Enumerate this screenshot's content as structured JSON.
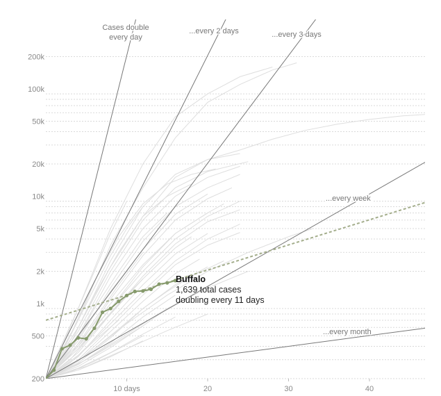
{
  "chart_data": {
    "type": "line",
    "title": "",
    "xlabel": "",
    "ylabel": "",
    "yscale": "log",
    "xlim": [
      0,
      47
    ],
    "ylim": [
      200,
      260000
    ],
    "x_ticks": [
      {
        "value": 10,
        "label": "10 days"
      },
      {
        "value": 20,
        "label": "20"
      },
      {
        "value": 30,
        "label": "30"
      },
      {
        "value": 40,
        "label": "40"
      }
    ],
    "y_ticks": [
      {
        "value": 200,
        "label": "200"
      },
      {
        "value": 500,
        "label": "500"
      },
      {
        "value": 1000,
        "label": "1k"
      },
      {
        "value": 2000,
        "label": "2k"
      },
      {
        "value": 5000,
        "label": "5k"
      },
      {
        "value": 10000,
        "label": "10k"
      },
      {
        "value": 20000,
        "label": "20k"
      },
      {
        "value": 50000,
        "label": "50k"
      },
      {
        "value": 100000,
        "label": "100k"
      },
      {
        "value": 200000,
        "label": "200k"
      }
    ],
    "grid": true,
    "reference_lines": [
      {
        "label": "Cases double every day",
        "label_lines": [
          "Cases double",
          "every day"
        ],
        "doubling_days": 1,
        "color": "#777777"
      },
      {
        "label": "...every 2 days",
        "label_lines": [
          "...every 2 days"
        ],
        "doubling_days": 2,
        "color": "#777777"
      },
      {
        "label": "...every 3 days",
        "label_lines": [
          "...every 3 days"
        ],
        "doubling_days": 3,
        "color": "#777777"
      },
      {
        "label": "...every week",
        "label_lines": [
          "...every week"
        ],
        "doubling_days": 7,
        "color": "#777777"
      },
      {
        "label": "...every month",
        "label_lines": [
          "...every month"
        ],
        "doubling_days": 30,
        "color": "#777777"
      }
    ],
    "highlight_series": {
      "name": "Buffalo",
      "color": "#869a6c",
      "x": [
        0,
        1,
        2,
        3,
        4,
        5,
        6,
        7,
        8,
        9,
        10,
        11,
        12,
        13,
        14,
        15,
        16
      ],
      "y": [
        200,
        240,
        380,
        410,
        480,
        470,
        590,
        830,
        900,
        1050,
        1190,
        1300,
        1310,
        1360,
        1520,
        1560,
        1639
      ],
      "trend": {
        "x": [
          0,
          47
        ],
        "y": [
          700,
          8800
        ],
        "style": "dashed"
      }
    },
    "background_series": [
      {
        "x": [
          0,
          4,
          8,
          12,
          16,
          20,
          24,
          28,
          32,
          36,
          40,
          44,
          47
        ],
        "y": [
          200,
          600,
          2200,
          6500,
          15000,
          22000,
          27000,
          34000,
          41000,
          47000,
          52000,
          56000,
          58000
        ]
      },
      {
        "x": [
          0,
          4,
          8,
          12,
          16,
          20,
          24,
          28
        ],
        "y": [
          200,
          900,
          5000,
          20000,
          55000,
          90000,
          130000,
          160000
        ]
      },
      {
        "x": [
          0,
          4,
          8,
          12,
          16,
          20,
          24,
          28,
          31
        ],
        "y": [
          200,
          700,
          3500,
          12000,
          35000,
          75000,
          110000,
          150000,
          175000
        ]
      },
      {
        "x": [
          0,
          4,
          8,
          12,
          16,
          20,
          24
        ],
        "y": [
          200,
          500,
          1800,
          5000,
          10000,
          15000,
          19000
        ]
      },
      {
        "x": [
          0,
          4,
          8,
          12,
          16,
          20,
          24
        ],
        "y": [
          200,
          450,
          1400,
          3800,
          8000,
          12000,
          16000
        ]
      },
      {
        "x": [
          0,
          4,
          8,
          12,
          16,
          20,
          23
        ],
        "y": [
          200,
          400,
          1100,
          2800,
          6000,
          9500,
          12000
        ]
      },
      {
        "x": [
          0,
          4,
          8,
          12,
          16,
          20,
          22
        ],
        "y": [
          200,
          380,
          900,
          2200,
          4500,
          7000,
          8500
        ]
      },
      {
        "x": [
          0,
          4,
          8,
          12,
          16,
          20,
          24
        ],
        "y": [
          200,
          350,
          800,
          1800,
          3600,
          5800,
          7500
        ]
      },
      {
        "x": [
          0,
          4,
          8,
          12,
          16,
          20
        ],
        "y": [
          200,
          320,
          700,
          1500,
          2900,
          4500
        ]
      },
      {
        "x": [
          0,
          4,
          8,
          12,
          16,
          20,
          24
        ],
        "y": [
          200,
          300,
          600,
          1200,
          2300,
          3500,
          4600
        ]
      },
      {
        "x": [
          0,
          4,
          8,
          12,
          16,
          19
        ],
        "y": [
          200,
          290,
          550,
          1050,
          1900,
          2600
        ]
      },
      {
        "x": [
          0,
          4,
          8,
          12,
          16,
          20
        ],
        "y": [
          200,
          280,
          480,
          900,
          1500,
          2200
        ]
      },
      {
        "x": [
          0,
          4,
          8,
          12,
          16
        ],
        "y": [
          200,
          270,
          430,
          750,
          1200
        ]
      },
      {
        "x": [
          0,
          4,
          8,
          12,
          15
        ],
        "y": [
          200,
          260,
          390,
          620,
          900
        ]
      },
      {
        "x": [
          0,
          4,
          8,
          12,
          16
        ],
        "y": [
          200,
          250,
          350,
          520,
          750
        ]
      },
      {
        "x": [
          0,
          4,
          8,
          12
        ],
        "y": [
          200,
          240,
          320,
          450
        ]
      },
      {
        "x": [
          0,
          3,
          6,
          9,
          12
        ],
        "y": [
          200,
          330,
          700,
          1500,
          3000
        ]
      },
      {
        "x": [
          0,
          3,
          6,
          9,
          12,
          15
        ],
        "y": [
          200,
          360,
          900,
          2000,
          4200,
          7000
        ]
      },
      {
        "x": [
          0,
          3,
          6,
          9,
          12,
          15,
          18
        ],
        "y": [
          200,
          420,
          1200,
          3000,
          6500,
          10000,
          13000
        ]
      },
      {
        "x": [
          0,
          3,
          6,
          9,
          12,
          15,
          18,
          21
        ],
        "y": [
          200,
          500,
          1600,
          4200,
          8500,
          13000,
          16000,
          18000
        ]
      },
      {
        "x": [
          0,
          4,
          8,
          12,
          16,
          20,
          25
        ],
        "y": [
          200,
          550,
          2000,
          6000,
          12000,
          17000,
          21000
        ]
      },
      {
        "x": [
          0,
          3,
          6,
          9,
          12
        ],
        "y": [
          200,
          300,
          550,
          1000,
          1700
        ]
      },
      {
        "x": [
          0,
          3,
          6,
          9
        ],
        "y": [
          200,
          280,
          450,
          700
        ]
      },
      {
        "x": [
          0,
          3,
          6,
          9,
          12
        ],
        "y": [
          200,
          230,
          290,
          380,
          500
        ]
      },
      {
        "x": [
          0,
          5,
          10,
          15,
          20,
          25,
          30,
          33
        ],
        "y": [
          200,
          330,
          650,
          1200,
          2000,
          3000,
          4200,
          5000
        ]
      },
      {
        "x": [
          0,
          5,
          10,
          15,
          20,
          25
        ],
        "y": [
          200,
          300,
          520,
          900,
          1400,
          2000
        ]
      },
      {
        "x": [
          0,
          5,
          10,
          15,
          20
        ],
        "y": [
          200,
          260,
          380,
          560,
          800
        ]
      },
      {
        "x": [
          0,
          4,
          8,
          12,
          16,
          20,
          24
        ],
        "y": [
          200,
          330,
          650,
          1300,
          2500,
          4000,
          5500
        ]
      },
      {
        "x": [
          0,
          4,
          8,
          12,
          16,
          20
        ],
        "y": [
          200,
          420,
          1000,
          2300,
          4500,
          7000
        ]
      },
      {
        "x": [
          0,
          4,
          8,
          12,
          16,
          20
        ],
        "y": [
          200,
          480,
          1300,
          3200,
          6800,
          10500
        ]
      },
      {
        "x": [
          0,
          2,
          4,
          6,
          8,
          10
        ],
        "y": [
          200,
          400,
          900,
          2000,
          4500,
          9000
        ]
      },
      {
        "x": [
          0,
          2,
          4,
          6,
          8,
          10,
          12
        ],
        "y": [
          200,
          350,
          700,
          1400,
          2800,
          5000,
          8000
        ]
      },
      {
        "x": [
          0,
          2,
          4,
          6,
          8
        ],
        "y": [
          200,
          300,
          500,
          800,
          1300
        ]
      },
      {
        "x": [
          0,
          3,
          6,
          9,
          12,
          15,
          18,
          22
        ],
        "y": [
          200,
          260,
          380,
          580,
          900,
          1300,
          1800,
          2500
        ]
      },
      {
        "x": [
          0,
          4,
          8,
          12,
          16,
          20,
          24
        ],
        "y": [
          200,
          400,
          900,
          2000,
          4000,
          6500,
          9000
        ]
      },
      {
        "x": [
          0,
          4,
          8,
          12,
          16,
          20,
          24
        ],
        "y": [
          200,
          600,
          2500,
          8000,
          16000,
          22000,
          25000
        ]
      },
      {
        "x": [
          0,
          3,
          6,
          9,
          12
        ],
        "y": [
          200,
          250,
          330,
          450,
          620
        ]
      },
      {
        "x": [
          0,
          4,
          8,
          12,
          16,
          18
        ],
        "y": [
          200,
          380,
          800,
          1700,
          3300,
          4200
        ]
      }
    ],
    "annotation": {
      "title": "Buffalo",
      "lines": [
        "1,639 total cases",
        "doubling every 11 days"
      ]
    }
  }
}
